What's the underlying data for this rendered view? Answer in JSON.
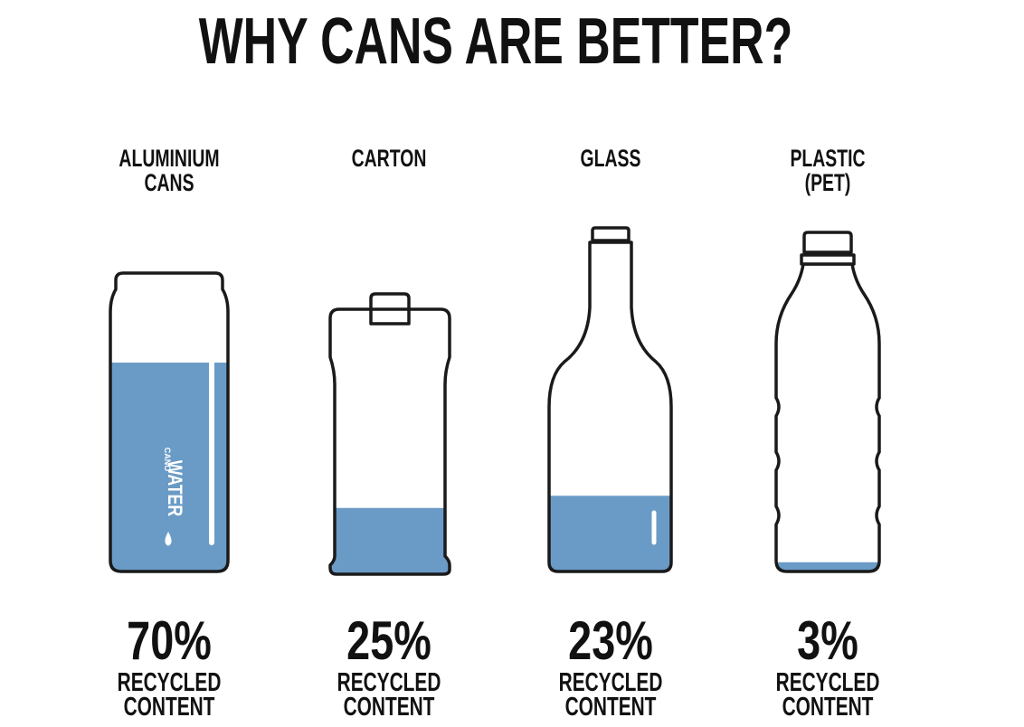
{
  "title": "WHY CANS ARE BETTER?",
  "brand": [
    "CANO",
    "WATER"
  ],
  "items": [
    {
      "label": [
        "ALUMINIUM",
        "CANS"
      ],
      "value": 70,
      "value_label": "70%",
      "caption": [
        "RECYCLED",
        "CONTENT"
      ]
    },
    {
      "label": [
        "CARTON"
      ],
      "value": 25,
      "value_label": "25%",
      "caption": [
        "RECYCLED",
        "CONTENT"
      ]
    },
    {
      "label": [
        "GLASS"
      ],
      "value": 23,
      "value_label": "23%",
      "caption": [
        "RECYCLED",
        "CONTENT"
      ]
    },
    {
      "label": [
        "PLASTIC",
        "(PET)"
      ],
      "value": 3,
      "value_label": "3%",
      "caption": [
        "RECYCLED",
        "CONTENT"
      ]
    }
  ]
}
